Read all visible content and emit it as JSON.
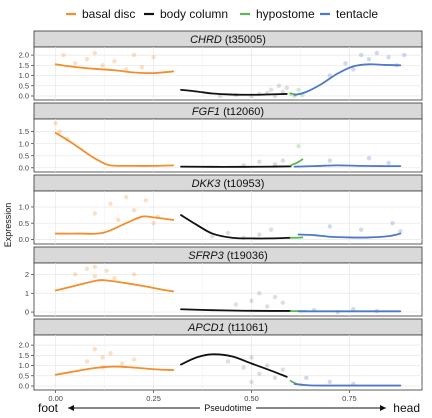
{
  "chart_data": {
    "type": "line",
    "ylabel": "Expression",
    "xlabel": "Pseudotime",
    "direction": {
      "left": "foot",
      "right": "head"
    },
    "xlim": [
      -0.04,
      0.92
    ],
    "x_ticks": [
      0.0,
      0.25,
      0.5,
      0.75
    ],
    "x_tick_labels": [
      "0.00",
      "0.25",
      "0.50",
      "0.75"
    ],
    "grid": true,
    "legend": {
      "placement": "top",
      "items": [
        {
          "label": "basal disc",
          "color": "#F28E2B"
        },
        {
          "label": "body column",
          "color": "#111111"
        },
        {
          "label": "hypostome",
          "color": "#59B84F"
        },
        {
          "label": "tentacle",
          "color": "#4E79C7"
        }
      ]
    },
    "panels": [
      {
        "gene": "CHRD",
        "id": " (t35005)",
        "ylim": [
          -0.05,
          2.25
        ],
        "yticks": [
          0.0,
          0.5,
          1.0,
          1.5,
          2.0
        ],
        "ytick_labels": [
          "0.0",
          "0.5",
          "1.0",
          "1.5",
          "2.0"
        ],
        "series": [
          {
            "name": "basal disc",
            "x": [
              0.0,
              0.05,
              0.1,
              0.15,
              0.2,
              0.25,
              0.3
            ],
            "y": [
              1.55,
              1.42,
              1.33,
              1.26,
              1.15,
              1.12,
              1.2
            ]
          },
          {
            "name": "body column",
            "x": [
              0.32,
              0.36,
              0.4,
              0.45,
              0.5,
              0.55,
              0.59
            ],
            "y": [
              0.3,
              0.22,
              0.12,
              0.07,
              0.06,
              0.08,
              0.1
            ]
          },
          {
            "name": "hypostome",
            "x": [
              0.6,
              0.615,
              0.63
            ],
            "y": [
              0.12,
              0.08,
              0.12
            ]
          },
          {
            "name": "tentacle",
            "x": [
              0.61,
              0.64,
              0.68,
              0.72,
              0.76,
              0.8,
              0.84,
              0.88
            ],
            "y": [
              0.05,
              0.2,
              0.6,
              1.1,
              1.45,
              1.55,
              1.52,
              1.5
            ]
          }
        ],
        "points": [
          {
            "group": "basal disc",
            "x": [
              0.02,
              0.05,
              0.08,
              0.1,
              0.12,
              0.15,
              0.18,
              0.2,
              0.22,
              0.25
            ],
            "y": [
              2.0,
              1.6,
              1.8,
              2.1,
              1.5,
              1.7,
              1.3,
              2.0,
              1.4,
              1.9
            ]
          },
          {
            "group": "body column",
            "x": [
              0.42,
              0.46,
              0.5,
              0.52,
              0.55,
              0.57,
              0.58,
              0.56,
              0.59,
              0.54
            ],
            "y": [
              0.0,
              0.05,
              0.0,
              0.1,
              0.3,
              0.5,
              0.2,
              0.0,
              0.4,
              0.15
            ]
          },
          {
            "group": "hypostome",
            "x": [
              0.6,
              0.61,
              0.62,
              0.63
            ],
            "y": [
              0.1,
              0.0,
              0.3,
              0.05
            ]
          },
          {
            "group": "tentacle",
            "x": [
              0.7,
              0.74,
              0.78,
              0.8,
              0.82,
              0.85,
              0.87,
              0.89,
              0.76
            ],
            "y": [
              1.0,
              1.6,
              2.0,
              1.8,
              2.1,
              1.9,
              1.5,
              2.0,
              1.3
            ]
          }
        ]
      },
      {
        "gene": "FGF1",
        "id": " (t12060)",
        "ylim": [
          -0.05,
          1.9
        ],
        "yticks": [
          0.0,
          0.5,
          1.0,
          1.5
        ],
        "ytick_labels": [
          "0.0",
          "0.5",
          "1.0",
          "1.5"
        ],
        "series": [
          {
            "name": "basal disc",
            "x": [
              0.0,
              0.04,
              0.08,
              0.11,
              0.14,
              0.2,
              0.25,
              0.3
            ],
            "y": [
              1.45,
              1.05,
              0.6,
              0.3,
              0.1,
              0.08,
              0.08,
              0.1
            ]
          },
          {
            "name": "body column",
            "x": [
              0.32,
              0.4,
              0.48,
              0.55,
              0.6
            ],
            "y": [
              0.05,
              0.04,
              0.04,
              0.05,
              0.06
            ]
          },
          {
            "name": "hypostome",
            "x": [
              0.6,
              0.615,
              0.63
            ],
            "y": [
              0.1,
              0.2,
              0.35
            ]
          },
          {
            "name": "tentacle",
            "x": [
              0.61,
              0.66,
              0.72,
              0.78,
              0.84,
              0.88
            ],
            "y": [
              0.05,
              0.07,
              0.1,
              0.08,
              0.07,
              0.07
            ]
          }
        ],
        "points": [
          {
            "group": "basal disc",
            "x": [
              0.0,
              0.01,
              0.03
            ],
            "y": [
              1.85,
              1.5,
              1.2
            ]
          },
          {
            "group": "body column",
            "x": [
              0.48,
              0.52,
              0.56,
              0.58
            ],
            "y": [
              0.1,
              0.25,
              0.15,
              0.3
            ]
          },
          {
            "group": "hypostome",
            "x": [
              0.62
            ],
            "y": [
              0.9
            ]
          },
          {
            "group": "tentacle",
            "x": [
              0.7,
              0.8,
              0.85
            ],
            "y": [
              0.3,
              0.4,
              0.2
            ]
          }
        ]
      },
      {
        "gene": "DKK3",
        "id": " (t10953)",
        "ylim": [
          -0.05,
          1.4
        ],
        "yticks": [
          0.0,
          0.5,
          1.0
        ],
        "ytick_labels": [
          "0.0",
          "0.5",
          "1.0"
        ],
        "series": [
          {
            "name": "basal disc",
            "x": [
              0.0,
              0.06,
              0.12,
              0.18,
              0.22,
              0.25,
              0.3
            ],
            "y": [
              0.18,
              0.18,
              0.2,
              0.5,
              0.7,
              0.68,
              0.6
            ]
          },
          {
            "name": "body column",
            "x": [
              0.32,
              0.36,
              0.4,
              0.45,
              0.5,
              0.55,
              0.6
            ],
            "y": [
              0.75,
              0.45,
              0.18,
              0.05,
              0.03,
              0.03,
              0.05
            ]
          },
          {
            "name": "hypostome",
            "x": [
              0.6,
              0.615,
              0.63
            ],
            "y": [
              0.05,
              0.05,
              0.06
            ]
          },
          {
            "name": "tentacle",
            "x": [
              0.62,
              0.66,
              0.7,
              0.75,
              0.8,
              0.85,
              0.88
            ],
            "y": [
              0.15,
              0.13,
              0.08,
              0.06,
              0.06,
              0.1,
              0.18
            ]
          }
        ],
        "points": [
          {
            "group": "basal disc",
            "x": [
              0.1,
              0.14,
              0.16,
              0.18,
              0.2,
              0.23,
              0.25,
              0.26
            ],
            "y": [
              0.8,
              1.1,
              0.6,
              1.3,
              0.9,
              1.2,
              0.5,
              0.7
            ]
          },
          {
            "group": "body column",
            "x": [
              0.4,
              0.44,
              0.48,
              0.52,
              0.55
            ],
            "y": [
              0.1,
              0.2,
              0.05,
              0.15,
              0.3
            ]
          },
          {
            "group": "tentacle",
            "x": [
              0.7,
              0.78,
              0.86,
              0.88
            ],
            "y": [
              0.4,
              0.3,
              0.5,
              0.25
            ]
          }
        ]
      },
      {
        "gene": "SFRP3",
        "id": " (t19036)",
        "ylim": [
          -0.05,
          2.45
        ],
        "yticks": [
          0.0,
          1.0,
          2.0
        ],
        "ytick_labels": [
          "0",
          "1",
          "2"
        ],
        "series": [
          {
            "name": "basal disc",
            "x": [
              0.0,
              0.05,
              0.1,
              0.12,
              0.16,
              0.22,
              0.27,
              0.3
            ],
            "y": [
              1.15,
              1.4,
              1.65,
              1.7,
              1.6,
              1.4,
              1.2,
              1.1
            ]
          },
          {
            "name": "body column",
            "x": [
              0.32,
              0.4,
              0.48,
              0.55,
              0.6
            ],
            "y": [
              0.15,
              0.1,
              0.07,
              0.06,
              0.06
            ]
          },
          {
            "name": "hypostome",
            "x": [
              0.6,
              0.62,
              0.64
            ],
            "y": [
              0.05,
              0.05,
              0.05
            ]
          },
          {
            "name": "tentacle",
            "x": [
              0.62,
              0.7,
              0.78,
              0.86,
              0.88
            ],
            "y": [
              0.04,
              0.04,
              0.04,
              0.04,
              0.04
            ]
          }
        ],
        "points": [
          {
            "group": "basal disc",
            "x": [
              0.05,
              0.08,
              0.1,
              0.13,
              0.15,
              0.2,
              0.1
            ],
            "y": [
              2.0,
              2.3,
              1.9,
              2.2,
              1.8,
              2.0,
              2.4
            ]
          },
          {
            "group": "body column",
            "x": [
              0.46,
              0.5,
              0.54,
              0.56,
              0.58,
              0.52
            ],
            "y": [
              0.4,
              0.6,
              0.3,
              0.8,
              0.5,
              1.0
            ]
          },
          {
            "group": "tentacle",
            "x": [
              0.66,
              0.72,
              0.76,
              0.82
            ],
            "y": [
              0.1,
              0.0,
              0.15,
              0.05
            ]
          }
        ]
      },
      {
        "gene": "APCD1",
        "id": " (t11061)",
        "ylim": [
          -0.05,
          2.35
        ],
        "yticks": [
          0.0,
          0.5,
          1.0,
          1.5,
          2.0
        ],
        "ytick_labels": [
          "0.0",
          "0.5",
          "1.0",
          "1.5",
          "2.0"
        ],
        "series": [
          {
            "name": "basal disc",
            "x": [
              0.0,
              0.05,
              0.1,
              0.15,
              0.2,
              0.25,
              0.3
            ],
            "y": [
              0.55,
              0.72,
              0.88,
              0.95,
              0.9,
              0.82,
              0.78
            ]
          },
          {
            "name": "body column",
            "x": [
              0.32,
              0.36,
              0.4,
              0.45,
              0.5,
              0.55,
              0.59
            ],
            "y": [
              1.05,
              1.4,
              1.55,
              1.45,
              1.1,
              0.75,
              0.45
            ]
          },
          {
            "name": "hypostome",
            "x": [
              0.6,
              0.615,
              0.63
            ],
            "y": [
              0.25,
              0.1,
              0.05
            ]
          },
          {
            "name": "tentacle",
            "x": [
              0.61,
              0.65,
              0.7,
              0.78,
              0.86,
              0.88
            ],
            "y": [
              0.1,
              0.03,
              0.02,
              0.02,
              0.02,
              0.02
            ]
          }
        ],
        "points": [
          {
            "group": "basal disc",
            "x": [
              0.08,
              0.1,
              0.12,
              0.14,
              0.17,
              0.2,
              0.12
            ],
            "y": [
              1.2,
              1.8,
              1.4,
              1.6,
              1.1,
              1.3,
              0.9
            ]
          },
          {
            "group": "body column",
            "x": [
              0.44,
              0.48,
              0.5,
              0.52,
              0.54,
              0.56,
              0.58,
              0.5
            ],
            "y": [
              1.2,
              0.9,
              1.4,
              0.6,
              1.0,
              0.4,
              0.8,
              0.2
            ]
          },
          {
            "group": "tentacle",
            "x": [
              0.64,
              0.7,
              0.76
            ],
            "y": [
              0.4,
              0.2,
              0.1
            ]
          }
        ]
      }
    ]
  }
}
